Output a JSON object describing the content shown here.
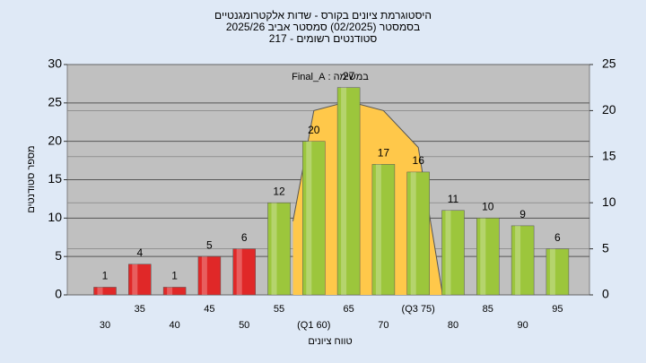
{
  "chart_data": {
    "type": "bar",
    "title": [
      "היסטוגרמת ציונים בקורס - שדות אלקטרומגנטיים",
      "בסמסטר  (02/2025)  סמסטר אביב 2025/26",
      "סטודנטים רשומים - 217"
    ],
    "annotation": "במשימה : Final_A",
    "x_label": "טווח ציונים",
    "y_label": "מספר סטודנטים",
    "categories": [
      "30",
      "35",
      "40",
      "45",
      "50",
      "55",
      "(Q1 60)",
      "65",
      "70",
      "(Q3 75)",
      "80",
      "85",
      "90",
      "95"
    ],
    "values": [
      1,
      4,
      1,
      5,
      6,
      12,
      20,
      27,
      17,
      16,
      11,
      10,
      9,
      6
    ],
    "colors": [
      "#e02828",
      "#e02828",
      "#e02828",
      "#e02828",
      "#e02828",
      "#9cc63c",
      "#9cc63c",
      "#9cc63c",
      "#9cc63c",
      "#9cc63c",
      "#9cc63c",
      "#9cc63c",
      "#9cc63c",
      "#9cc63c"
    ],
    "area": {
      "color": "#ffc84a",
      "axis": "y2",
      "x": [
        57,
        60,
        65,
        70,
        75,
        78.5
      ],
      "values": [
        8,
        20,
        21,
        20,
        16,
        0
      ]
    },
    "ylim": [
      0,
      30
    ],
    "yticks": [
      0,
      5,
      10,
      15,
      20,
      25,
      30
    ],
    "y2lim": [
      0,
      25
    ],
    "y2ticks": [
      0,
      5,
      10,
      15,
      20,
      25
    ],
    "grid": true
  }
}
